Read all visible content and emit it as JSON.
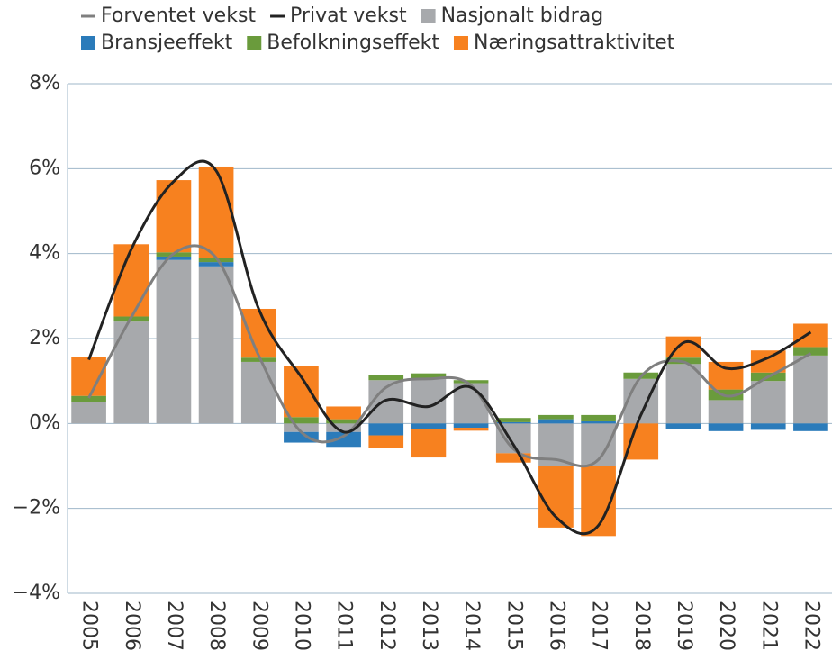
{
  "chart_data": {
    "type": "stacked_bar_line",
    "categories": [
      "2005",
      "2006",
      "2007",
      "2008",
      "2009",
      "2010",
      "2011",
      "2012",
      "2013",
      "2014",
      "2015",
      "2016",
      "2017",
      "2018",
      "2019",
      "2020",
      "2021",
      "2022"
    ],
    "series": [
      {
        "name": "Nasjonalt bidrag",
        "color": "#a7a9ac",
        "kind": "bar",
        "values": [
          0.5,
          2.4,
          3.85,
          3.7,
          1.45,
          -0.2,
          -0.2,
          1.02,
          1.05,
          0.95,
          -0.7,
          -1.0,
          -1.0,
          1.05,
          1.4,
          0.55,
          1.0,
          1.6
        ]
      },
      {
        "name": "Bransjeeffekt",
        "color": "#2b7bba",
        "kind": "bar",
        "values": [
          0,
          0,
          0.08,
          0.1,
          0,
          -0.25,
          -0.35,
          -0.28,
          -0.12,
          -0.1,
          0.03,
          0.1,
          0.05,
          0,
          -0.12,
          -0.18,
          -0.15,
          -0.18
        ]
      },
      {
        "name": "Befolkningseffekt",
        "color": "#6a9b3c",
        "kind": "bar",
        "values": [
          0.15,
          0.12,
          0.1,
          0.1,
          0.1,
          0.15,
          0.1,
          0.12,
          0.13,
          0.07,
          0.1,
          0.1,
          0.15,
          0.15,
          0.15,
          0.25,
          0.2,
          0.2
        ]
      },
      {
        "name": "Næringsattraktivitet",
        "color": "#f7811f",
        "kind": "bar",
        "values": [
          0.92,
          1.7,
          1.7,
          2.15,
          1.15,
          1.2,
          0.3,
          -0.3,
          -0.68,
          -0.07,
          -0.22,
          -1.45,
          -1.65,
          -0.85,
          0.5,
          0.65,
          0.52,
          0.55
        ]
      },
      {
        "name": "Forventet vekst",
        "color": "#7f7f7f",
        "kind": "line",
        "values": [
          0.6,
          2.5,
          4.0,
          3.9,
          1.6,
          -0.2,
          -0.3,
          0.85,
          1.05,
          0.9,
          -0.6,
          -0.85,
          -0.85,
          1.1,
          1.45,
          0.65,
          1.1,
          1.65
        ]
      },
      {
        "name": "Privat vekst",
        "color": "#222222",
        "kind": "line",
        "values": [
          1.5,
          4.1,
          5.7,
          5.95,
          2.7,
          1.1,
          -0.2,
          0.55,
          0.4,
          0.85,
          -0.5,
          -2.2,
          -2.4,
          0.2,
          1.9,
          1.3,
          1.55,
          2.15
        ]
      }
    ],
    "legend_order": [
      4,
      5,
      0,
      1,
      2,
      3
    ],
    "ylim": [
      -4,
      8
    ],
    "yticks": [
      {
        "value": -4,
        "label": "−4%"
      },
      {
        "value": -2,
        "label": "−2%"
      },
      {
        "value": 0,
        "label": "0%"
      },
      {
        "value": 2,
        "label": "2%"
      },
      {
        "value": 4,
        "label": "4%"
      },
      {
        "value": 6,
        "label": "6%"
      },
      {
        "value": 8,
        "label": "8%"
      }
    ],
    "grid": true
  }
}
